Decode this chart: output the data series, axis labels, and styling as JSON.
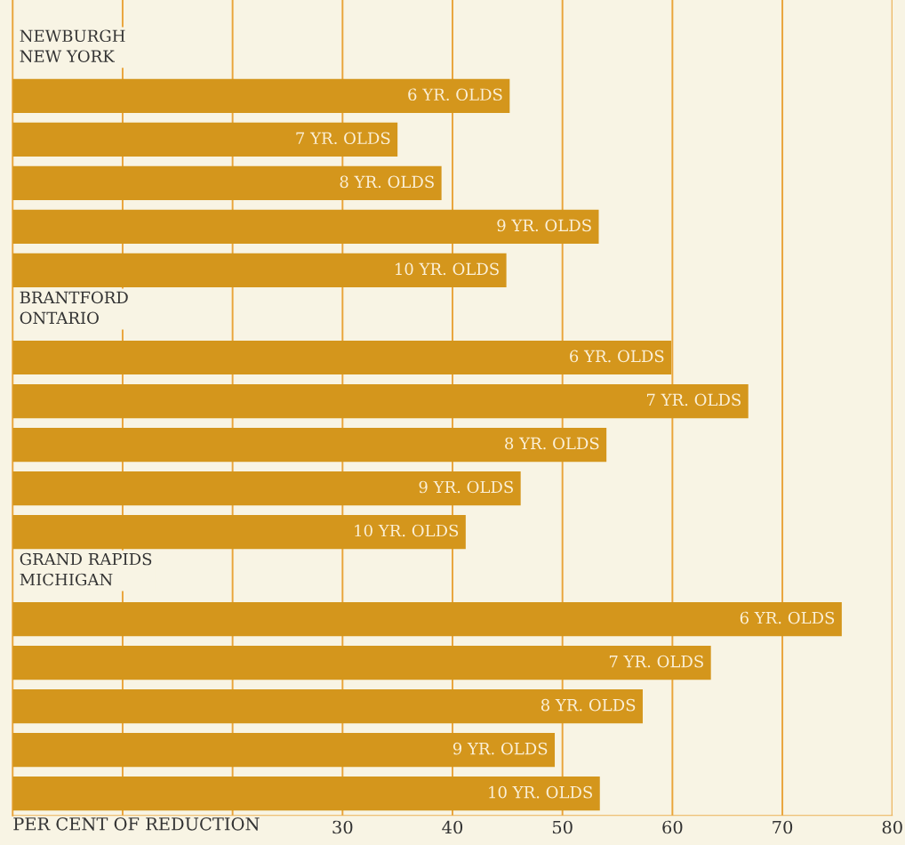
{
  "chart_data": {
    "type": "bar",
    "orientation": "horizontal",
    "xlabel": "PER CENT OF REDUCTION",
    "categories": [
      "NEWBURGH\nNEW YORK",
      "6 YR. OLDS",
      "7 YR. OLDS",
      "8 YR. OLDS",
      "9 YR. OLDS",
      "10 YR. OLDS",
      "BRANTFORD\nONTARIO",
      "6 YR. OLDS",
      "7 YR. OLDS",
      "8 YR. OLDS",
      "9 YR. OLDS",
      "10 YR. OLDS",
      "GRAND RAPIDS\nMICHIGAN",
      "6 YR. OLDS",
      "7 YR. OLDS",
      "8 YR. OLDS",
      "9 YR. OLDS",
      "10 YR. OLDS"
    ],
    "values": [
      null,
      45.2,
      35.0,
      39.0,
      53.3,
      44.9,
      null,
      59.9,
      66.9,
      54.0,
      46.2,
      41.2,
      null,
      75.4,
      63.5,
      57.3,
      49.3,
      53.4
    ],
    "color": "#d4961c",
    "xlim": [
      0,
      80
    ],
    "xticks": [
      {
        "value": 10,
        "label": null
      },
      {
        "value": 20,
        "label": null
      },
      30,
      40,
      50,
      60,
      70,
      80
    ],
    "grid": "x"
  }
}
